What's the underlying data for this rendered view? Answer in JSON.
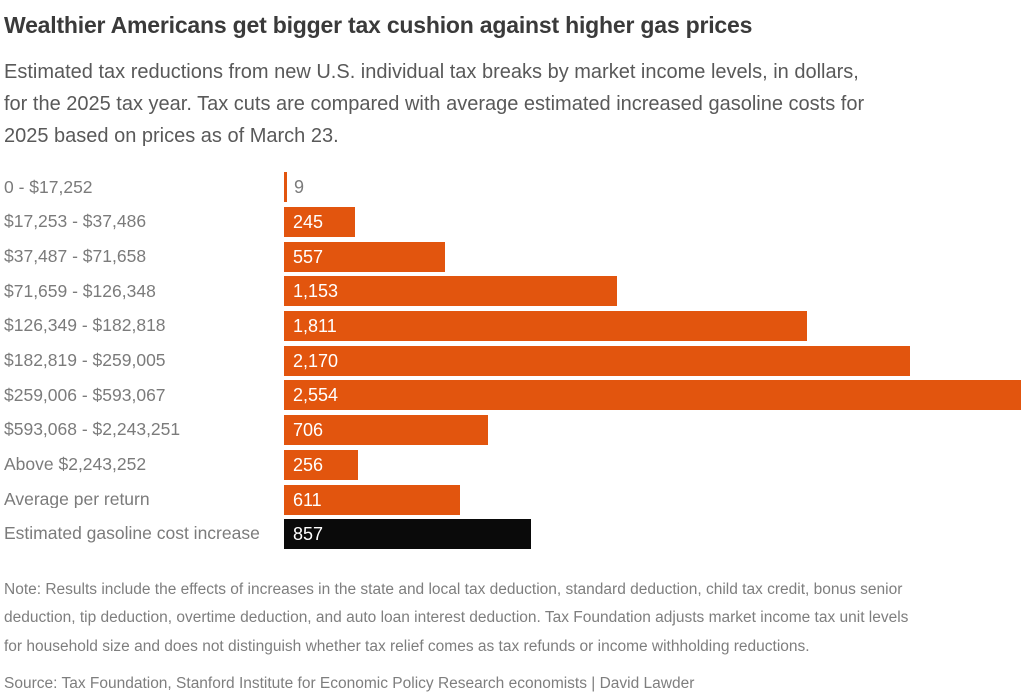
{
  "header": {
    "title": "Wealthier Americans get bigger tax cushion against higher gas prices",
    "subtitle": "Estimated tax reductions from new U.S. individual tax breaks by market income levels, in dollars, for the 2025 tax year. Tax cuts are compared with average estimated increased gasoline costs for 2025 based on prices as of March 23.",
    "subtitle_lines": [
      "Estimated tax reductions from new U.S. individual tax breaks by market income levels, in dollars,",
      "for the 2025 tax year. Tax cuts are compared with average estimated increased gasoline costs for",
      "2025 based on prices as of March 23."
    ]
  },
  "chart_data": {
    "type": "bar",
    "orientation": "horizontal",
    "categories": [
      "0 - $17,252",
      "$17,253 - $37,486",
      "$37,487 - $71,658",
      "$71,659 - $126,348",
      "$126,349 - $182,818",
      "$182,819 - $259,005",
      "$259,006 - $593,067",
      "$593,068 - $2,243,251",
      "Above $2,243,252",
      "Average per return",
      "Estimated gasoline cost increase"
    ],
    "values": [
      9,
      245,
      557,
      1153,
      1811,
      2170,
      2554,
      706,
      256,
      611,
      857
    ],
    "value_labels": [
      "9",
      "245",
      "557",
      "1,153",
      "1,811",
      "2,170",
      "2,554",
      "706",
      "256",
      "611",
      "857"
    ],
    "xlim": [
      0,
      2554
    ],
    "xmax": 2554,
    "highlight_index": 10,
    "bar_color": "#e2550e",
    "highlight_color": "#0a0a0a",
    "outside_label_threshold": 0.02,
    "grid": false,
    "legend": false
  },
  "footer": {
    "note": "Note: Results include the effects of increases in the state and local tax deduction, standard deduction, child tax credit, bonus senior deduction, tip deduction, overtime deduction, and auto loan interest deduction. Tax Foundation adjusts market income tax unit levels for household size and does not distinguish whether tax relief comes as tax refunds or income withholding reductions.",
    "note_lines": [
      "Note: Results include the effects of increases in the state and local tax deduction, standard deduction, child tax credit, bonus senior",
      "deduction, tip deduction, overtime deduction, and auto loan interest deduction. Tax Foundation adjusts market income tax unit levels",
      "for household size and does not distinguish whether tax relief comes as tax refunds or income withholding reductions."
    ],
    "source": "Source: Tax Foundation, Stanford Institute for Economic Policy Research economists | David Lawder"
  },
  "colors": {
    "title_text": "#3a3a3a",
    "subtitle_text": "#595959",
    "category_text": "#7b7b7b",
    "bar_orange": "#e2550e",
    "bar_black": "#0a0a0a",
    "value_text_inside": "#ffffff",
    "footer_text": "#7e7e7e",
    "background": "#ffffff"
  }
}
